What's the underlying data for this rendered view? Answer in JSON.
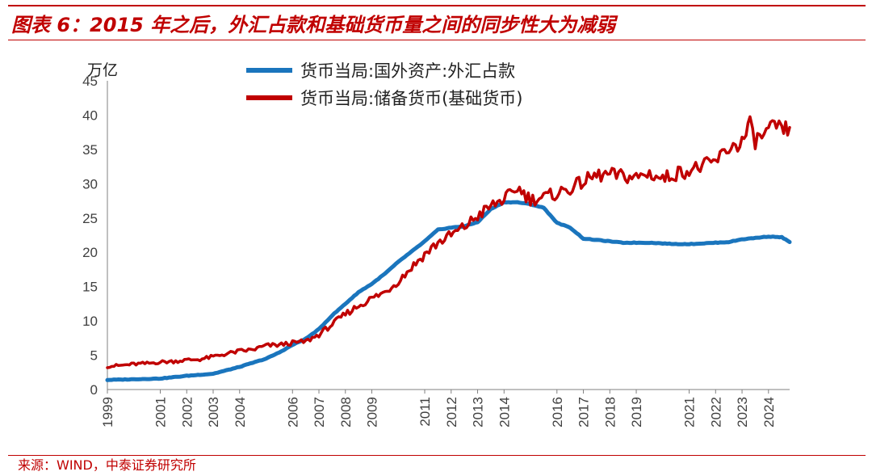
{
  "header": {
    "title": "图表 6：2015 年之后，外汇占款和基础货币量之间的同步性大为减弱"
  },
  "footer": {
    "source": "来源：WIND，中泰证券研究所"
  },
  "colors": {
    "accent": "#c00000",
    "series_fx": "#1a75bd",
    "series_base": "#c00000"
  },
  "chart_data": {
    "type": "line",
    "title": "图表 6：2015 年之后，外汇占款和基础货币量之间的同步性大为减弱",
    "ylabel": "万亿",
    "xlabel": "",
    "ylim": [
      0,
      45
    ],
    "xlim": [
      1999.0,
      2024.8
    ],
    "y_ticks": [
      0,
      5,
      10,
      15,
      20,
      25,
      30,
      35,
      40,
      45
    ],
    "x_ticks": [
      1999,
      2001,
      2002,
      2003,
      2004,
      2006,
      2007,
      2008,
      2009,
      2011,
      2012,
      2013,
      2014,
      2016,
      2017,
      2018,
      2019,
      2021,
      2022,
      2023,
      2024
    ],
    "grid": false,
    "legend": "top-center",
    "series": [
      {
        "name": "货币当局:国外资产:外汇占款",
        "x": [
          1999.0,
          2000.0,
          2001.0,
          2002.0,
          2003.0,
          2004.0,
          2005.0,
          2005.5,
          2006.0,
          2006.5,
          2007.0,
          2007.5,
          2008.0,
          2008.5,
          2009.0,
          2009.5,
          2010.0,
          2010.5,
          2011.0,
          2011.5,
          2012.0,
          2012.5,
          2013.0,
          2013.5,
          2014.0,
          2014.5,
          2015.0,
          2015.5,
          2016.0,
          2016.5,
          2017.0,
          2017.5,
          2018.0,
          2018.5,
          2019.0,
          2019.5,
          2020.0,
          2020.5,
          2021.0,
          2021.5,
          2022.0,
          2022.5,
          2023.0,
          2023.5,
          2024.0,
          2024.5,
          2024.8
        ],
        "values": [
          1.4,
          1.5,
          1.6,
          2.0,
          2.3,
          3.3,
          4.5,
          5.4,
          6.5,
          7.4,
          8.8,
          10.8,
          12.5,
          14.2,
          15.4,
          16.9,
          18.6,
          20.1,
          21.6,
          23.3,
          23.6,
          23.8,
          24.4,
          26.3,
          27.3,
          27.3,
          27.0,
          26.5,
          24.3,
          23.6,
          22.0,
          21.8,
          21.6,
          21.4,
          21.4,
          21.4,
          21.3,
          21.2,
          21.2,
          21.3,
          21.4,
          21.5,
          21.9,
          22.1,
          22.3,
          22.2,
          21.5
        ]
      },
      {
        "name": "货币当局:储备货币(基础货币)",
        "x": [
          1999.0,
          1999.5,
          2000.0,
          2000.5,
          2001.0,
          2001.5,
          2002.0,
          2002.5,
          2003.0,
          2003.5,
          2004.0,
          2004.5,
          2005.0,
          2005.5,
          2006.0,
          2006.5,
          2007.0,
          2007.5,
          2008.0,
          2008.5,
          2009.0,
          2009.5,
          2010.0,
          2010.5,
          2011.0,
          2011.5,
          2012.0,
          2012.5,
          2013.0,
          2013.5,
          2014.0,
          2014.3,
          2014.5,
          2015.0,
          2015.5,
          2016.0,
          2016.5,
          2017.0,
          2017.5,
          2018.0,
          2018.5,
          2019.0,
          2019.5,
          2020.0,
          2020.5,
          2021.0,
          2021.5,
          2022.0,
          2022.5,
          2023.0,
          2023.3,
          2023.5,
          2024.0,
          2024.3,
          2024.5,
          2024.8
        ],
        "values": [
          3.4,
          3.5,
          3.7,
          3.8,
          4.0,
          4.1,
          4.3,
          4.4,
          4.8,
          5.2,
          5.6,
          5.8,
          6.4,
          6.5,
          6.8,
          7.0,
          8.0,
          9.5,
          11.0,
          12.2,
          13.3,
          14.2,
          15.8,
          17.8,
          19.7,
          21.4,
          22.5,
          23.7,
          25.3,
          26.7,
          27.8,
          28.5,
          29.5,
          27.7,
          28.0,
          28.6,
          29.3,
          30.3,
          31.2,
          31.3,
          31.1,
          30.9,
          31.5,
          30.7,
          31.5,
          32.0,
          32.5,
          33.2,
          35.2,
          36.0,
          38.5,
          36.3,
          37.5,
          38.6,
          37.5,
          38.2
        ]
      }
    ]
  }
}
